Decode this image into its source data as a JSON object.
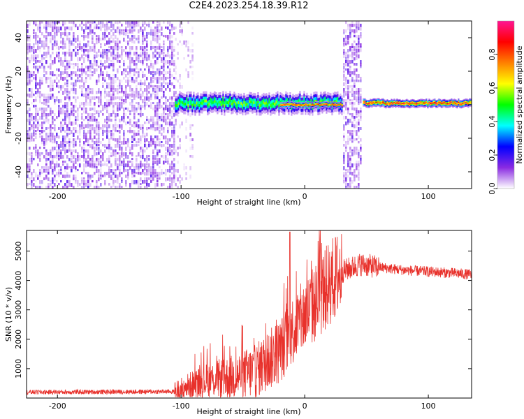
{
  "title": "C2E4.2023.254.18.39.R12",
  "chart_data": [
    {
      "type": "heatmap",
      "name": "spectrogram",
      "xlabel": "Height of straight line (km)",
      "ylabel": "Frequency (Hz)",
      "xlim": [
        -225,
        135
      ],
      "ylim": [
        -50,
        50
      ],
      "xticks": [
        -200,
        -100,
        0,
        100
      ],
      "yticks": [
        -40,
        -20,
        0,
        20,
        40
      ],
      "colorbar": {
        "label": "Normalized spectral amplitude",
        "range": [
          0,
          1
        ],
        "ticks": [
          0.0,
          0.2,
          0.4,
          0.6,
          0.8
        ],
        "colors": [
          "#ffffff",
          "#8a2be2",
          "#0000ff",
          "#00ffff",
          "#00ff00",
          "#ffff00",
          "#ff8000",
          "#ff0000",
          "#ff1493"
        ]
      },
      "features": [
        {
          "kind": "noise",
          "x_range": [
            -225,
            -105
          ],
          "f_range": [
            -50,
            50
          ],
          "level": 0.12
        },
        {
          "kind": "sparse_noise",
          "x_range": [
            -105,
            -90
          ],
          "f_range": [
            -50,
            50
          ],
          "level": 0.06
        },
        {
          "kind": "carrier",
          "x_range": [
            -105,
            30
          ],
          "center_f": 1,
          "width_f": 5,
          "peak": 0.55
        },
        {
          "kind": "carrier",
          "x_range": [
            -20,
            30
          ],
          "center_f": 0,
          "width_f": 1.5,
          "peak": 0.9
        },
        {
          "kind": "noise",
          "x_range": [
            31,
            46
          ],
          "f_range": [
            -50,
            50
          ],
          "level": 0.12
        },
        {
          "kind": "carrier",
          "x_range": [
            47,
            135
          ],
          "center_f": 1,
          "width_f": 2,
          "peak": 0.9
        }
      ]
    },
    {
      "type": "line",
      "name": "snr",
      "xlabel": "Height of straight line (km)",
      "ylabel": "SNR (10 * v/v)",
      "xlim": [
        -225,
        135
      ],
      "ylim": [
        0,
        5700
      ],
      "xticks": [
        -200,
        -100,
        0,
        100
      ],
      "yticks": [
        1000,
        2000,
        3000,
        4000,
        5000
      ],
      "color": "#e8312b",
      "profile": [
        [
          -225,
          200
        ],
        [
          -105,
          220
        ],
        [
          -95,
          400
        ],
        [
          -80,
          600
        ],
        [
          -60,
          700
        ],
        [
          -40,
          900
        ],
        [
          -20,
          1600
        ],
        [
          -10,
          2300
        ],
        [
          0,
          2800
        ],
        [
          10,
          3300
        ],
        [
          20,
          3900
        ],
        [
          30,
          4300
        ],
        [
          45,
          4550
        ],
        [
          60,
          4450
        ],
        [
          80,
          4350
        ],
        [
          100,
          4300
        ],
        [
          120,
          4250
        ],
        [
          135,
          4200
        ]
      ],
      "peak": {
        "x": -12,
        "y": 5650
      }
    }
  ]
}
